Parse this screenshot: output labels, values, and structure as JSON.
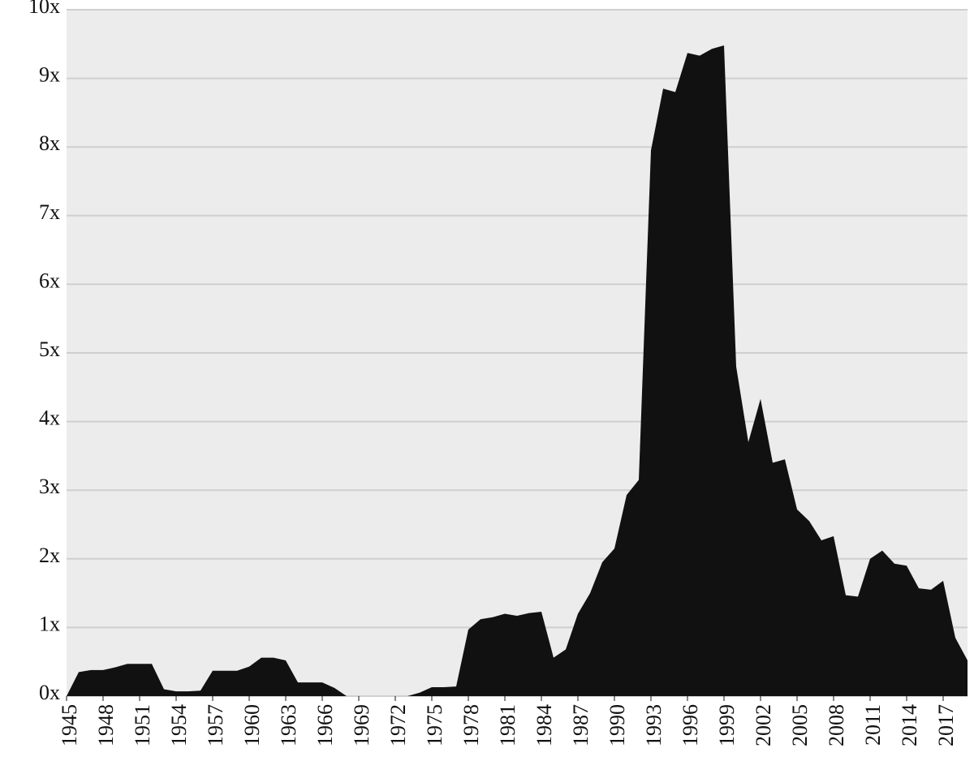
{
  "chart_data": {
    "type": "area",
    "color": "#111111",
    "grid": true,
    "x": [
      1945,
      1946,
      1947,
      1948,
      1949,
      1950,
      1951,
      1952,
      1953,
      1954,
      1955,
      1956,
      1957,
      1958,
      1959,
      1960,
      1961,
      1962,
      1963,
      1964,
      1965,
      1966,
      1967,
      1968,
      1969,
      1970,
      1971,
      1972,
      1973,
      1974,
      1975,
      1976,
      1977,
      1978,
      1979,
      1980,
      1981,
      1982,
      1983,
      1984,
      1985,
      1986,
      1987,
      1988,
      1989,
      1990,
      1991,
      1992,
      1993,
      1994,
      1995,
      1996,
      1997,
      1998,
      1999,
      2000,
      2001,
      2002,
      2003,
      2004,
      2005,
      2006,
      2007,
      2008,
      2009,
      2010,
      2011,
      2012,
      2013,
      2014,
      2015,
      2016,
      2017,
      2018,
      2019
    ],
    "values": [
      0,
      0.35,
      0.38,
      0.38,
      0.42,
      0.47,
      0.47,
      0.47,
      0.1,
      0.07,
      0.07,
      0.08,
      0.37,
      0.37,
      0.37,
      0.43,
      0.56,
      0.56,
      0.52,
      0.2,
      0.2,
      0.2,
      0.12,
      0,
      0,
      0,
      0,
      0,
      0,
      0.05,
      0.13,
      0.13,
      0.14,
      0.97,
      1.12,
      1.15,
      1.2,
      1.17,
      1.21,
      1.23,
      0.56,
      0.68,
      1.2,
      1.5,
      1.95,
      2.15,
      2.93,
      3.15,
      7.95,
      8.85,
      8.8,
      9.37,
      9.33,
      9.43,
      9.48,
      4.8,
      3.7,
      4.33,
      3.4,
      3.45,
      2.72,
      2.55,
      2.27,
      2.33,
      1.47,
      1.45,
      2.0,
      2.12,
      1.93,
      1.9,
      1.57,
      1.55,
      1.68,
      0.85,
      0.52
    ],
    "xlim": [
      1945,
      2019
    ],
    "xticks": [
      1945,
      1948,
      1951,
      1954,
      1957,
      1960,
      1963,
      1966,
      1969,
      1972,
      1975,
      1978,
      1981,
      1984,
      1987,
      1990,
      1993,
      1996,
      1999,
      2002,
      2005,
      2008,
      2011,
      2014,
      2017
    ],
    "ylim": [
      0,
      10
    ],
    "yticks": [
      {
        "value": 0,
        "label": "0x"
      },
      {
        "value": 1,
        "label": "1x"
      },
      {
        "value": 2,
        "label": "2x"
      },
      {
        "value": 3,
        "label": "3x"
      },
      {
        "value": 4,
        "label": "4x"
      },
      {
        "value": 5,
        "label": "5x"
      },
      {
        "value": 6,
        "label": "6x"
      },
      {
        "value": 7,
        "label": "7x"
      },
      {
        "value": 8,
        "label": "8x"
      },
      {
        "value": 9,
        "label": "9x"
      },
      {
        "value": 10,
        "label": "10x"
      }
    ]
  }
}
